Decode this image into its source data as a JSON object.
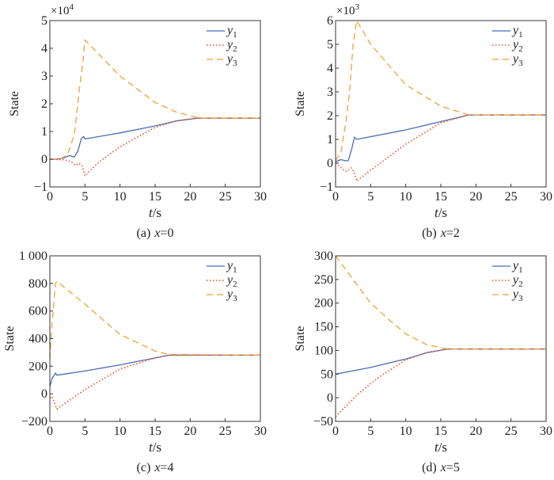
{
  "colors": {
    "y1": "#4a6db3",
    "y2": "#e8522a",
    "y3": "#f0a133",
    "axis": "#333333"
  },
  "chart_data": [
    {
      "type": "line",
      "caption_label": "(a)",
      "caption_var": "x",
      "caption_value": "=0",
      "xlabel_var": "t",
      "xlabel_unit": "/s",
      "ylabel": "State",
      "multiplier": "×10",
      "multiplier_exp": "4",
      "xlim": [
        0,
        30
      ],
      "ylim": [
        -1,
        5
      ],
      "grid": false,
      "legend": "top-right",
      "xticks": [
        "0",
        "5",
        "10",
        "15",
        "20",
        "25",
        "30"
      ],
      "yticks": [
        "−1",
        "0",
        "1",
        "2",
        "3",
        "4",
        "5"
      ],
      "series": [
        {
          "name": "y",
          "sub": "1",
          "style": "solid",
          "x": [
            0,
            1,
            2,
            2.8,
            3.5,
            4,
            4.5,
            4.8,
            5,
            10,
            15,
            18,
            21,
            30
          ],
          "y": [
            0,
            0,
            0.05,
            0.13,
            0.08,
            0.3,
            0.75,
            0.82,
            0.73,
            0.95,
            1.2,
            1.38,
            1.48,
            1.48
          ]
        },
        {
          "name": "y",
          "sub": "2",
          "style": "dotted",
          "x": [
            0,
            2,
            3,
            3.6,
            4.2,
            4.6,
            5,
            7,
            10,
            15,
            18,
            21,
            30
          ],
          "y": [
            0,
            -0.02,
            -0.08,
            -0.22,
            -0.15,
            -0.25,
            -0.6,
            -0.1,
            0.45,
            1.15,
            1.38,
            1.48,
            1.48
          ]
        },
        {
          "name": "y",
          "sub": "3",
          "style": "dashed",
          "x": [
            0,
            1.5,
            2.5,
            3.5,
            4.2,
            4.7,
            5,
            10,
            15,
            18,
            21,
            22,
            30
          ],
          "y": [
            0,
            0.02,
            0.15,
            0.9,
            2.5,
            3.5,
            4.3,
            3.0,
            2.05,
            1.7,
            1.5,
            1.48,
            1.48
          ]
        }
      ]
    },
    {
      "type": "line",
      "caption_label": "(b)",
      "caption_var": "x",
      "caption_value": "=2",
      "xlabel_var": "t",
      "xlabel_unit": "/s",
      "ylabel": "State",
      "multiplier": "×10",
      "multiplier_exp": "3",
      "xlim": [
        0,
        30
      ],
      "ylim": [
        -1,
        6
      ],
      "grid": false,
      "legend": "top-right",
      "xticks": [
        "0",
        "5",
        "10",
        "15",
        "20",
        "25",
        "30"
      ],
      "yticks": [
        "−1",
        "0",
        "1",
        "2",
        "3",
        "4",
        "5",
        "6"
      ],
      "series": [
        {
          "name": "y",
          "sub": "1",
          "style": "solid",
          "x": [
            0,
            0.7,
            1.5,
            1.8,
            2.3,
            2.7,
            3,
            10,
            15,
            19,
            30
          ],
          "y": [
            0.05,
            0.15,
            0.1,
            0.1,
            0.6,
            1.1,
            1.0,
            1.4,
            1.75,
            2.03,
            2.03
          ]
        },
        {
          "name": "y",
          "sub": "2",
          "style": "dotted",
          "x": [
            0,
            1,
            1.5,
            2.2,
            2.6,
            3,
            5,
            10,
            15,
            19,
            30
          ],
          "y": [
            0,
            -0.25,
            -0.35,
            -0.2,
            -0.35,
            -0.75,
            -0.3,
            0.8,
            1.7,
            2.03,
            2.03
          ]
        },
        {
          "name": "y",
          "sub": "3",
          "style": "dashed",
          "x": [
            0,
            0.8,
            1.5,
            2,
            2.5,
            3,
            5,
            10,
            15,
            19,
            30
          ],
          "y": [
            0.1,
            0.5,
            1.8,
            3,
            5,
            6,
            5,
            3.3,
            2.4,
            2.03,
            2.03
          ]
        }
      ]
    },
    {
      "type": "line",
      "caption_label": "(c)",
      "caption_var": "x",
      "caption_value": "=4",
      "xlabel_var": "t",
      "xlabel_unit": "/s",
      "ylabel": "State",
      "xlim": [
        0,
        30
      ],
      "ylim": [
        -200,
        1000
      ],
      "grid": false,
      "legend": "top-right",
      "xticks": [
        "0",
        "5",
        "10",
        "15",
        "20",
        "25",
        "30"
      ],
      "yticks": [
        "−200",
        "0",
        "200",
        "400",
        "600",
        "800",
        "1 000"
      ],
      "series": [
        {
          "name": "y",
          "sub": "1",
          "style": "solid",
          "x": [
            0,
            0.3,
            0.8,
            1,
            5,
            10,
            15,
            17,
            30
          ],
          "y": [
            50,
            110,
            150,
            135,
            165,
            210,
            260,
            280,
            280
          ]
        },
        {
          "name": "y",
          "sub": "2",
          "style": "dotted",
          "x": [
            0,
            0.3,
            1,
            5,
            10,
            15,
            17,
            30
          ],
          "y": [
            -30,
            -20,
            -110,
            30,
            180,
            260,
            280,
            280
          ]
        },
        {
          "name": "y",
          "sub": "3",
          "style": "dashed",
          "x": [
            0,
            0.3,
            0.8,
            1,
            5,
            10,
            15,
            17,
            30
          ],
          "y": [
            250,
            500,
            800,
            815,
            650,
            430,
            310,
            285,
            280
          ]
        }
      ]
    },
    {
      "type": "line",
      "caption_label": "(d)",
      "caption_var": "x",
      "caption_value": "=5",
      "xlabel_var": "t",
      "xlabel_unit": "/s",
      "ylabel": "State",
      "xlim": [
        0,
        30
      ],
      "ylim": [
        -50,
        300
      ],
      "grid": false,
      "legend": "top-right",
      "xticks": [
        "0",
        "5",
        "10",
        "15",
        "20",
        "25",
        "30"
      ],
      "yticks": [
        "−50",
        "0",
        "50",
        "100",
        "150",
        "200",
        "250",
        "300"
      ],
      "series": [
        {
          "name": "y",
          "sub": "1",
          "style": "solid",
          "x": [
            0,
            5,
            10,
            13,
            16,
            30
          ],
          "y": [
            50,
            64,
            82,
            95,
            103,
            103
          ]
        },
        {
          "name": "y",
          "sub": "2",
          "style": "dotted",
          "x": [
            0,
            3,
            5,
            7,
            10,
            13,
            16,
            30
          ],
          "y": [
            -40,
            5,
            30,
            52,
            80,
            96,
            103,
            103
          ]
        },
        {
          "name": "y",
          "sub": "3",
          "style": "dashed",
          "x": [
            0,
            3,
            5,
            8,
            10,
            13,
            16,
            30
          ],
          "y": [
            300,
            240,
            200,
            160,
            135,
            112,
            103,
            103
          ]
        }
      ]
    }
  ]
}
